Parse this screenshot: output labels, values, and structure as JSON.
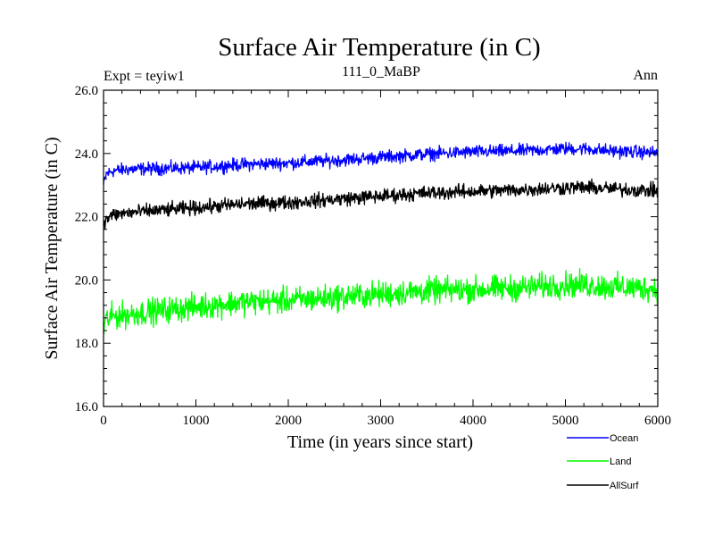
{
  "chart_data": {
    "type": "line",
    "title": "Surface Air Temperature (in C)",
    "subtitle": "111_0_MaBP",
    "left_note": "Expt = teyiw1",
    "right_note": "Ann",
    "xlabel": "Time (in years since start)",
    "ylabel": "Surface Air Temperature (in C)",
    "xlim": [
      0,
      6000
    ],
    "ylim": [
      16.0,
      26.0
    ],
    "x_ticks": [
      0,
      1000,
      2000,
      3000,
      4000,
      5000,
      6000
    ],
    "x_tick_labels": [
      "0",
      "1000",
      "2000",
      "3000",
      "4000",
      "5000",
      "6000"
    ],
    "y_ticks": [
      16,
      18,
      20,
      22,
      24,
      26
    ],
    "y_tick_labels": [
      "16.0",
      "18.0",
      "20.0",
      "22.0",
      "24.0",
      "26.0"
    ],
    "grid": false,
    "legend_position": "bottom-right",
    "series": [
      {
        "name": "Ocean",
        "color": "#0000ff",
        "x": [
          0,
          30,
          100,
          250,
          500,
          1000,
          1500,
          2000,
          2500,
          3000,
          3500,
          4000,
          4500,
          5000,
          5200,
          5500,
          6000
        ],
        "values": [
          23.0,
          23.35,
          23.45,
          23.5,
          23.52,
          23.55,
          23.65,
          23.7,
          23.78,
          23.88,
          23.98,
          24.05,
          24.08,
          24.15,
          24.15,
          24.08,
          24.02
        ],
        "noise": 0.1
      },
      {
        "name": "Land",
        "color": "#00ff00",
        "x": [
          0,
          30,
          100,
          250,
          500,
          1000,
          1500,
          2000,
          2500,
          3000,
          3500,
          4000,
          4500,
          5000,
          5200,
          5500,
          6000
        ],
        "values": [
          18.5,
          18.75,
          18.85,
          18.9,
          19.0,
          19.15,
          19.3,
          19.35,
          19.45,
          19.55,
          19.65,
          19.7,
          19.75,
          19.85,
          19.85,
          19.78,
          19.72
        ],
        "noise": 0.2
      },
      {
        "name": "AllSurf",
        "color": "#000000",
        "x": [
          0,
          30,
          100,
          250,
          500,
          1000,
          1500,
          2000,
          2500,
          3000,
          3500,
          4000,
          4500,
          5000,
          5200,
          5500,
          6000
        ],
        "values": [
          21.6,
          21.95,
          22.05,
          22.12,
          22.18,
          22.28,
          22.4,
          22.45,
          22.55,
          22.65,
          22.75,
          22.8,
          22.85,
          22.92,
          22.93,
          22.88,
          22.82
        ],
        "noise": 0.11
      }
    ]
  }
}
